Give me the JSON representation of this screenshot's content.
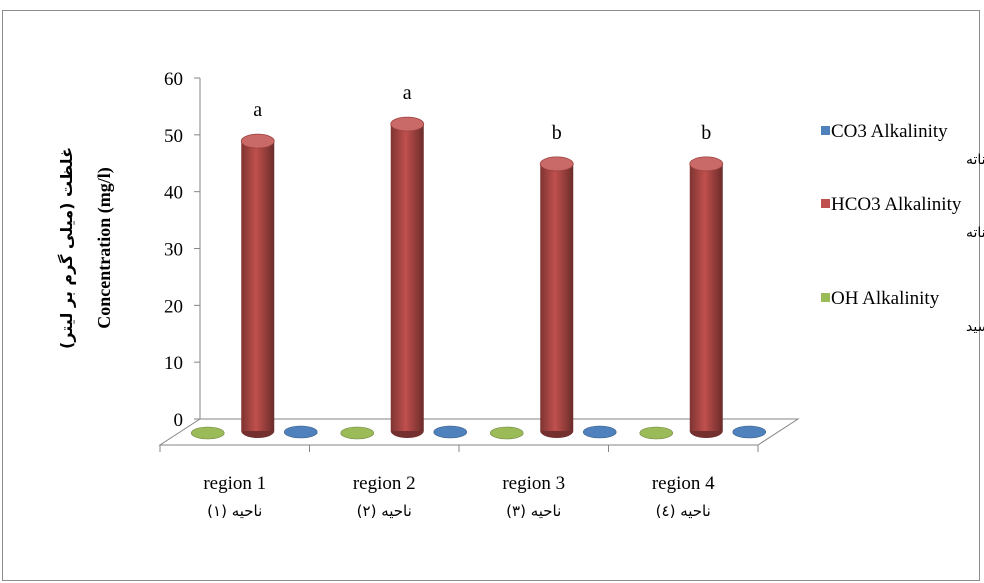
{
  "chart_data": {
    "type": "bar",
    "yticks": [
      "0",
      "10",
      "20",
      "30",
      "40",
      "50",
      "60"
    ],
    "ylim": [
      0,
      60
    ],
    "ylabel": "Concentration (mg/l)",
    "ylabel_fa": "غلظت (میلی گرم بر لیتر)",
    "categories": [
      "region 1",
      "region 2",
      "region 3",
      "region 4"
    ],
    "categories_fa": [
      "ناحیه (۱)",
      "ناحیه (۲)",
      "ناحیه (۳)",
      "ناحیه (٤)"
    ],
    "series": [
      {
        "name": "CO3 Alkalinity",
        "name_fa": "قلیاییت کربناته",
        "color": "#4f81bd",
        "values": [
          0,
          0,
          0,
          0
        ]
      },
      {
        "name": "HCO3 Alkalinity",
        "name_fa": "قلیاییت بی کربناته",
        "color": "#c0504d",
        "values": [
          51,
          54,
          47,
          47
        ],
        "labels": [
          "a",
          "a",
          "b",
          "b"
        ]
      },
      {
        "name": "OH Alkalinity",
        "name_fa": "قلیاییت هیدروکسید",
        "color": "#9bbb59",
        "values": [
          0,
          0,
          0,
          0
        ]
      }
    ],
    "legend": "right",
    "grid": false
  }
}
